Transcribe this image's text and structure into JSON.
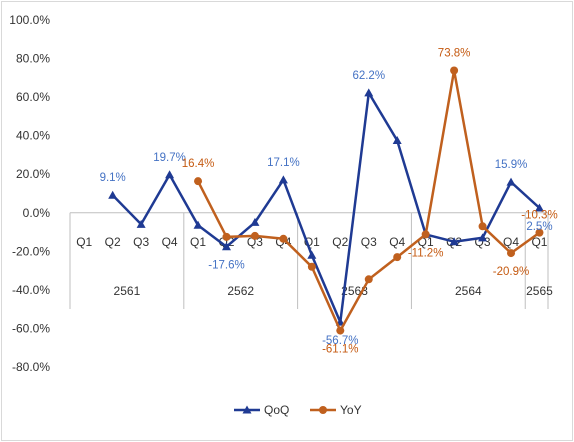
{
  "chart_data": {
    "type": "line",
    "categories": [
      "Q1",
      "Q2",
      "Q3",
      "Q4",
      "Q1",
      "Q2",
      "Q3",
      "Q4",
      "Q1",
      "Q2",
      "Q3",
      "Q4",
      "Q1",
      "Q2",
      "Q3",
      "Q4",
      "Q1"
    ],
    "category_groups": [
      {
        "label": "2561",
        "span": 4
      },
      {
        "label": "2562",
        "span": 4
      },
      {
        "label": "2563",
        "span": 4
      },
      {
        "label": "2564",
        "span": 4
      },
      {
        "label": "2565",
        "span": 1
      }
    ],
    "ylim": [
      -80,
      100
    ],
    "yticks": [
      "100.0%",
      "80.0%",
      "60.0%",
      "40.0%",
      "20.0%",
      "0.0%",
      "-20.0%",
      "-40.0%",
      "-60.0%",
      "-80.0%"
    ],
    "ytick_values": [
      100,
      80,
      60,
      40,
      20,
      0,
      -20,
      -40,
      -60,
      -80
    ],
    "legend_position": "bottom",
    "grid": false,
    "series": [
      {
        "name": "QoQ",
        "color": "#1F3A93",
        "marker": "triangle",
        "values": [
          null,
          9.1,
          -6.0,
          19.7,
          -6.5,
          -17.6,
          -5.0,
          17.1,
          -22.0,
          -56.7,
          62.2,
          37.5,
          -11.2,
          -15.0,
          -13.0,
          15.9,
          2.5
        ],
        "labels": [
          null,
          "9.1%",
          null,
          "19.7%",
          null,
          "-17.6%",
          null,
          "17.1%",
          null,
          "-56.7%",
          "62.2%",
          null,
          null,
          null,
          null,
          "15.9%",
          "2.5%"
        ]
      },
      {
        "name": "YoY",
        "color": "#C0601E",
        "marker": "circle",
        "values": [
          null,
          null,
          null,
          null,
          16.4,
          -12.5,
          -12.0,
          -13.5,
          -28.0,
          -61.1,
          -34.5,
          -23.0,
          -11.2,
          73.8,
          -7.0,
          -20.9,
          -10.3
        ],
        "labels": [
          null,
          null,
          null,
          null,
          "16.4%",
          null,
          null,
          null,
          null,
          "-61.1%",
          null,
          null,
          "-11.2%",
          "73.8%",
          null,
          "-20.9%",
          "-10.3%"
        ]
      }
    ]
  }
}
